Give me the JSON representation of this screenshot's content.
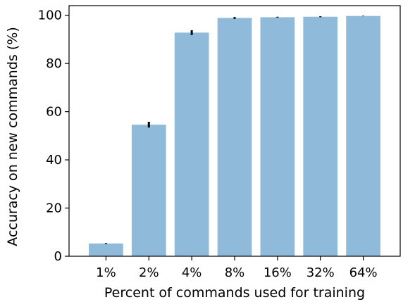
{
  "chart_data": {
    "type": "bar",
    "categories": [
      "1%",
      "2%",
      "4%",
      "8%",
      "16%",
      "32%",
      "64%"
    ],
    "values": [
      5.3,
      54.6,
      92.8,
      98.9,
      99.2,
      99.4,
      99.7
    ],
    "errors": [
      0.2,
      1.2,
      1.0,
      0.4,
      0.2,
      0.2,
      0.1
    ],
    "xlabel": "Percent of commands used for training",
    "ylabel": "Accuracy on new commands (%)",
    "ylim": [
      0,
      104
    ],
    "yticks": [
      0,
      20,
      40,
      60,
      80,
      100
    ],
    "grid": false,
    "colors": {
      "bar": "#8fbada",
      "error": "#000000",
      "axis": "#000000"
    }
  }
}
